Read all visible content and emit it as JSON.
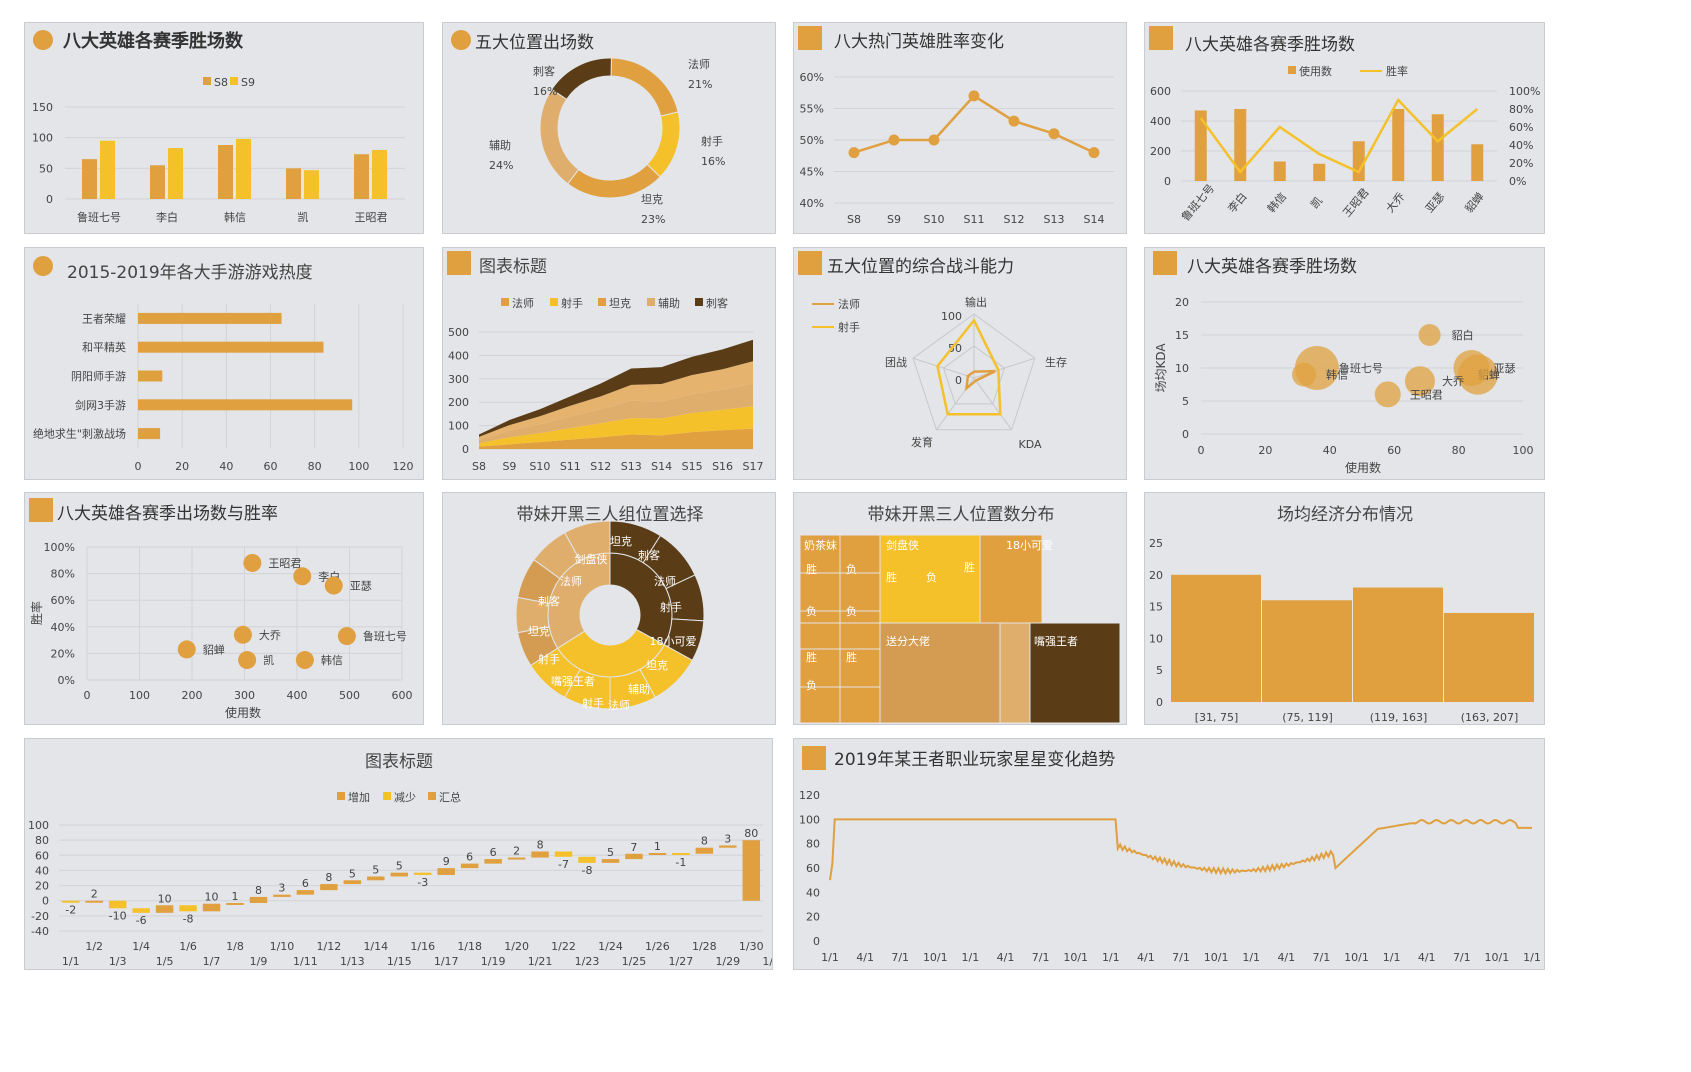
{
  "colors": {
    "orange": "#e0a040",
    "gold": "#f5c12a",
    "tan": "#d39c52",
    "light": "#dfae6c",
    "brown": "#5a3d17",
    "grid": "#d2d4d8"
  },
  "charts": [
    {
      "id": "c1",
      "type": "bar",
      "title": "八大英雄各赛季胜场数",
      "legend": [
        "S8",
        "S9"
      ],
      "categories": [
        "鲁班七号",
        "李白",
        "韩信",
        "凯",
        "王昭君"
      ],
      "series": [
        {
          "name": "S8",
          "values": [
            65,
            55,
            88,
            50,
            73
          ]
        },
        {
          "name": "S9",
          "values": [
            95,
            83,
            98,
            47,
            80
          ]
        }
      ],
      "ylim": [
        0,
        150
      ],
      "yticks": [
        "0",
        "50",
        "100",
        "150"
      ]
    },
    {
      "id": "c2",
      "type": "pie",
      "title": "五大位置出场数",
      "slices": [
        {
          "label": "法师",
          "pct": "21%",
          "value": 21
        },
        {
          "label": "射手",
          "pct": "16%",
          "value": 16
        },
        {
          "label": "坦克",
          "pct": "23%",
          "value": 23
        },
        {
          "label": "辅助",
          "pct": "24%",
          "value": 24
        },
        {
          "label": "刺客",
          "pct": "16%",
          "value": 16
        }
      ]
    },
    {
      "id": "c3",
      "type": "line",
      "title": "八大热门英雄胜率变化",
      "x": [
        "S8",
        "S9",
        "S10",
        "S11",
        "S12",
        "S13",
        "S14"
      ],
      "values": [
        48,
        50,
        50,
        57,
        53,
        51,
        48
      ],
      "yticks": [
        "60%",
        "55%",
        "50%",
        "45%",
        "40%"
      ],
      "ylim": [
        40,
        60
      ]
    },
    {
      "id": "c4",
      "type": "bar",
      "title": "八大英雄各赛季胜场数",
      "legend": [
        "使用数",
        "胜率"
      ],
      "categories": [
        "鲁班七号",
        "李白",
        "韩信",
        "凯",
        "王昭君",
        "大乔",
        "亚瑟",
        "貂蝉"
      ],
      "series": [
        {
          "name": "使用数",
          "values": [
            470,
            480,
            130,
            115,
            265,
            480,
            445,
            245
          ]
        },
        {
          "name": "胜率",
          "values": [
            35,
            5,
            30,
            15,
            5,
            45,
            22,
            40
          ]
        }
      ],
      "yticks": [
        "600",
        "400",
        "200",
        "0"
      ],
      "y2ticks": [
        "100%",
        "80%",
        "60%",
        "40%",
        "20%",
        "0%"
      ]
    },
    {
      "id": "c5",
      "type": "bar",
      "title": "2015-2019年各大手游游戏热度",
      "categories": [
        "王者荣耀",
        "和平精英",
        "阴阳师手游",
        "剑网3手游",
        "绝地求生\"刺激战场"
      ],
      "values": [
        65,
        84,
        11,
        97,
        10
      ],
      "xticks": [
        "0",
        "20",
        "40",
        "60",
        "80",
        "100",
        "120"
      ],
      "xlim": [
        0,
        120
      ]
    },
    {
      "id": "c6",
      "type": "area",
      "title": "图表标题",
      "legend": [
        "法师",
        "射手",
        "坦克",
        "辅助",
        "刺客"
      ],
      "x": [
        "S8",
        "S9",
        "S10",
        "S11",
        "S12",
        "S13",
        "S14",
        "S15",
        "S16",
        "S17"
      ],
      "series": [
        {
          "name": "法师",
          "values": [
            10,
            20,
            30,
            40,
            50,
            62,
            58,
            72,
            80,
            87
          ]
        },
        {
          "name": "射手",
          "values": [
            15,
            30,
            38,
            50,
            60,
            70,
            73,
            82,
            88,
            96
          ]
        },
        {
          "name": "坦克",
          "values": [
            15,
            28,
            38,
            50,
            60,
            74,
            72,
            80,
            85,
            96
          ]
        },
        {
          "name": "辅助",
          "values": [
            12,
            24,
            34,
            45,
            55,
            68,
            75,
            82,
            88,
            96
          ]
        },
        {
          "name": "刺客",
          "values": [
            10,
            22,
            30,
            40,
            55,
            70,
            72,
            78,
            85,
            92
          ]
        }
      ],
      "yticks": [
        "500",
        "400",
        "300",
        "200",
        "100",
        "0"
      ],
      "ylim": [
        0,
        500
      ]
    },
    {
      "id": "c7",
      "type": "radar",
      "title": "五大位置的综合战斗能力",
      "legend": [
        "法师",
        "射手"
      ],
      "axes": [
        "输出",
        "生存",
        "KDA",
        "发育",
        "团战"
      ],
      "series": [
        {
          "name": "法师",
          "values": [
            10,
            35,
            5,
            20,
            10
          ]
        },
        {
          "name": "射手",
          "values": [
            90,
            40,
            70,
            70,
            60
          ]
        }
      ],
      "rticks": [
        "100",
        "50",
        "0"
      ]
    },
    {
      "id": "c8",
      "type": "scatter",
      "title": "八大英雄各赛季胜场数",
      "xlabel": "使用数",
      "ylabel": "场均KDA",
      "points": [
        {
          "label": "貂蝉",
          "x": 86,
          "y": 9
        },
        {
          "label": "鲁班七号",
          "x": 36,
          "y": 10
        },
        {
          "label": "韩信",
          "x": 32,
          "y": 9
        },
        {
          "label": "亚瑟",
          "x": 84,
          "y": 10
        },
        {
          "label": "大乔",
          "x": 68,
          "y": 8
        },
        {
          "label": "王昭君",
          "x": 58,
          "y": 6
        },
        {
          "label": "貂白",
          "x": 71,
          "y": 15
        }
      ],
      "xticks": [
        "0",
        "20",
        "40",
        "60",
        "80",
        "100"
      ],
      "yticks": [
        "20",
        "15",
        "10",
        "5",
        "0"
      ]
    },
    {
      "id": "c9",
      "type": "scatter",
      "title": "八大英雄各赛季出场数与胜率",
      "xlabel": "使用数",
      "ylabel": "胜率",
      "points": [
        {
          "label": "王昭君",
          "x": 315,
          "y": 88
        },
        {
          "label": "李白",
          "x": 410,
          "y": 78
        },
        {
          "label": "亚瑟",
          "x": 470,
          "y": 71
        },
        {
          "label": "大乔",
          "x": 297,
          "y": 34
        },
        {
          "label": "鲁班七号",
          "x": 495,
          "y": 33
        },
        {
          "label": "貂蝉",
          "x": 190,
          "y": 23
        },
        {
          "label": "凯",
          "x": 305,
          "y": 15
        },
        {
          "label": "韩信",
          "x": 415,
          "y": 15
        }
      ],
      "xticks": [
        "0",
        "100",
        "200",
        "300",
        "400",
        "500",
        "600"
      ],
      "yticks": [
        "100%",
        "80%",
        "60%",
        "40%",
        "20%",
        "0%"
      ]
    },
    {
      "id": "c10",
      "type": "pie",
      "title": "带妹开黑三人组位置选择",
      "labels": [
        "坦克",
        "刺客",
        "法师",
        "射手",
        "18小可爱",
        "坦克",
        "辅助",
        "法师",
        "射手",
        "嘴强王者",
        "射手",
        "坦克",
        "刺客",
        "法师",
        "剑盘侠",
        "坦克",
        "射手",
        "奶茶妹",
        "法"
      ]
    },
    {
      "id": "c11",
      "type": "heatmap",
      "title": "带妹开黑三人位置数分布",
      "groups": [
        "奶茶妹",
        "剑盘侠",
        "18小可爱",
        "送分大佬",
        "嘴强王者"
      ],
      "cells": [
        "胜",
        "负",
        "胜",
        "负",
        "胜",
        "负",
        "负",
        "胜",
        "胜",
        "负"
      ]
    },
    {
      "id": "c12",
      "type": "bar",
      "title": "场均经济分布情况",
      "categories": [
        "[31, 75]",
        "(75, 119]",
        "(119, 163]",
        "(163, 207]"
      ],
      "values": [
        20,
        16,
        18,
        14
      ],
      "yticks": [
        "25",
        "20",
        "15",
        "10",
        "5",
        "0"
      ],
      "ylim": [
        0,
        25
      ]
    },
    {
      "id": "c13",
      "type": "bar",
      "title": "图表标题",
      "legend": [
        "增加",
        "减少",
        "汇总"
      ],
      "x_top": [
        "1/2",
        "1/4",
        "1/6",
        "1/8",
        "1/10",
        "1/12",
        "1/14",
        "1/16",
        "1/18",
        "1/20",
        "1/22",
        "1/24",
        "1/26",
        "1/28",
        "1/30"
      ],
      "x_bottom": [
        "1/1",
        "1/3",
        "1/5",
        "1/7",
        "1/9",
        "1/11",
        "1/13",
        "1/15",
        "1/17",
        "1/19",
        "1/21",
        "1/23",
        "1/25",
        "1/27",
        "1/29",
        "1/31"
      ],
      "deltas": [
        -2,
        2,
        -10,
        -6,
        10,
        -8,
        10,
        1,
        8,
        3,
        6,
        8,
        5,
        5,
        5,
        -3,
        9,
        6,
        6,
        2,
        8,
        -7,
        -8,
        5,
        7,
        1,
        -1,
        8,
        3
      ],
      "total": 80,
      "yticks": [
        "100",
        "80",
        "60",
        "40",
        "20",
        "0",
        "-20",
        "-40"
      ]
    },
    {
      "id": "c14",
      "type": "line",
      "title": "2019年某王者职业玩家星星变化趋势",
      "yticks": [
        "120",
        "100",
        "80",
        "60",
        "40",
        "20",
        "0"
      ],
      "xticks": [
        "1/1",
        "4/1",
        "7/1",
        "10/1",
        "1/1",
        "4/1",
        "7/1",
        "10/1",
        "1/1",
        "4/1",
        "7/1",
        "10/1",
        "1/1",
        "4/1",
        "7/1",
        "10/1",
        "1/1",
        "4/1",
        "7/1",
        "10/1",
        "1/1"
      ]
    }
  ]
}
